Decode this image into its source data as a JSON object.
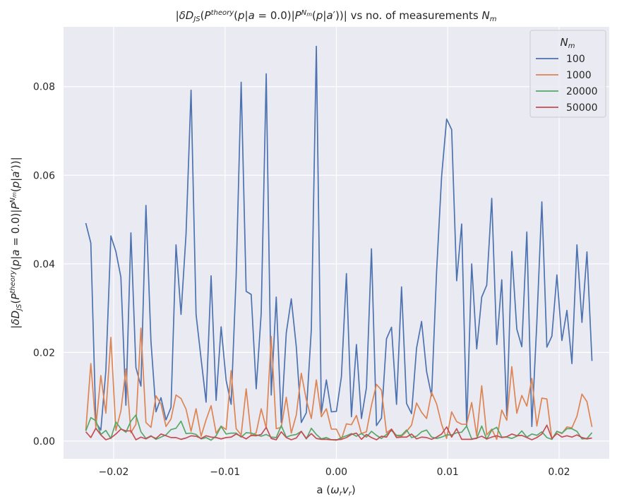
{
  "chart_data": {
    "type": "line",
    "title": "|δD_JS(P^theory(p|a = 0.0)|P^N_m(p|a'))| vs no. of measurements N_m",
    "xlabel": "a (ω_r v_r)",
    "ylabel": "|δD_JS(P^theory(p|a = 0.0)|P^N_m(p|a'))|",
    "xlim": [
      -0.0245,
      0.0245
    ],
    "ylim": [
      -0.004,
      0.0935
    ],
    "xticks": [
      -0.02,
      -0.01,
      0.0,
      0.01,
      0.02
    ],
    "xtick_labels": [
      "−0.02",
      "−0.01",
      "0.00",
      "0.01",
      "0.02"
    ],
    "yticks": [
      0.0,
      0.02,
      0.04,
      0.06,
      0.08
    ],
    "ytick_labels": [
      "0.00",
      "0.02",
      "0.04",
      "0.06",
      "0.08"
    ],
    "grid": true,
    "legend": {
      "title": "N_m",
      "placement": "top-right"
    },
    "x_start": -0.0225,
    "x_step": 0.00045,
    "series": [
      {
        "name": "100",
        "color": "#4c72b0",
        "values": [
          0.0492,
          0.0447,
          0.0042,
          0.0025,
          0.0159,
          0.0463,
          0.0428,
          0.037,
          0.0081,
          0.047,
          0.0166,
          0.0124,
          0.0532,
          0.0225,
          0.0066,
          0.0098,
          0.0048,
          0.0076,
          0.0443,
          0.0286,
          0.0467,
          0.0792,
          0.0286,
          0.0186,
          0.0088,
          0.0373,
          0.0092,
          0.0258,
          0.0137,
          0.0083,
          0.0373,
          0.081,
          0.0338,
          0.0331,
          0.0118,
          0.0289,
          0.0829,
          0.0104,
          0.0325,
          0.0042,
          0.0244,
          0.0321,
          0.0213,
          0.0042,
          0.0064,
          0.0252,
          0.0891,
          0.0063,
          0.0138,
          0.0066,
          0.0067,
          0.0145,
          0.0378,
          0.0055,
          0.0218,
          0.0051,
          0.0121,
          0.0434,
          0.0035,
          0.0052,
          0.0231,
          0.0257,
          0.0083,
          0.0348,
          0.0085,
          0.0062,
          0.021,
          0.027,
          0.0157,
          0.0102,
          0.0384,
          0.0598,
          0.0727,
          0.0703,
          0.0362,
          0.049,
          0.0032,
          0.04,
          0.0208,
          0.0325,
          0.0352,
          0.0548,
          0.0218,
          0.0364,
          0.0057,
          0.0428,
          0.0253,
          0.0213,
          0.0472,
          0.0033,
          0.0268,
          0.054,
          0.0212,
          0.0237,
          0.0375,
          0.0227,
          0.0295,
          0.0175,
          0.0443,
          0.0268,
          0.0427,
          0.0181
        ]
      },
      {
        "name": "1000",
        "color": "#dd8452",
        "values": [
          0.0024,
          0.0175,
          0.0031,
          0.0148,
          0.0063,
          0.0234,
          0.0024,
          0.0068,
          0.0163,
          0.0019,
          0.0038,
          0.0255,
          0.0042,
          0.0031,
          0.0102,
          0.0084,
          0.0033,
          0.005,
          0.0104,
          0.0096,
          0.0072,
          0.0022,
          0.0073,
          0.0011,
          0.0048,
          0.008,
          0.0018,
          0.0034,
          0.0026,
          0.0159,
          0.0028,
          0.0014,
          0.0118,
          0.0012,
          0.0019,
          0.0073,
          0.0029,
          0.0236,
          0.0028,
          0.0031,
          0.0099,
          0.0018,
          0.0059,
          0.0153,
          0.0093,
          0.0051,
          0.0138,
          0.0055,
          0.0073,
          0.0027,
          0.0027,
          0.0004,
          0.0039,
          0.0037,
          0.0058,
          0.0017,
          0.0021,
          0.0081,
          0.0128,
          0.0115,
          0.0019,
          0.0027,
          0.0012,
          0.0011,
          0.0022,
          0.0036,
          0.0086,
          0.0065,
          0.0051,
          0.011,
          0.0084,
          0.0038,
          0.0006,
          0.0066,
          0.0044,
          0.0038,
          0.0038,
          0.0087,
          0.0012,
          0.0125,
          0.0014,
          0.0027,
          0.0004,
          0.007,
          0.0047,
          0.0168,
          0.0063,
          0.0103,
          0.0079,
          0.0141,
          0.0034,
          0.0097,
          0.0095,
          0.0004,
          0.0022,
          0.0017,
          0.0032,
          0.003,
          0.0056,
          0.0106,
          0.0089,
          0.0032
        ]
      },
      {
        "name": "20000",
        "color": "#55a868",
        "values": [
          0.0023,
          0.0053,
          0.0046,
          0.0015,
          0.0024,
          0.0006,
          0.0043,
          0.0028,
          0.002,
          0.0045,
          0.0059,
          0.0021,
          0.0006,
          0.0012,
          0.0004,
          0.0009,
          0.0014,
          0.0026,
          0.0029,
          0.0045,
          0.0017,
          0.0018,
          0.0015,
          0.0005,
          0.0008,
          0.0002,
          0.0012,
          0.0033,
          0.0016,
          0.0018,
          0.0018,
          0.0009,
          0.0019,
          0.0018,
          0.0014,
          0.0011,
          0.0015,
          0.0009,
          0.0008,
          0.0035,
          0.0009,
          0.0013,
          0.0015,
          0.0022,
          0.0005,
          0.0029,
          0.0015,
          0.0005,
          0.0008,
          0.0003,
          0.0002,
          0.0008,
          0.0012,
          0.0017,
          0.0011,
          0.0017,
          0.0009,
          0.0022,
          0.0013,
          0.0006,
          0.0015,
          0.0024,
          0.0013,
          0.0013,
          0.0025,
          0.0008,
          0.0011,
          0.0021,
          0.0025,
          0.0009,
          0.0006,
          0.0009,
          0.0014,
          0.0014,
          0.0019,
          0.002,
          0.0034,
          0.0005,
          0.0006,
          0.0034,
          0.0004,
          0.0025,
          0.0031,
          0.0009,
          0.0009,
          0.0006,
          0.0011,
          0.0023,
          0.0009,
          0.0016,
          0.0013,
          0.0021,
          0.0008,
          0.0004,
          0.0022,
          0.0018,
          0.0028,
          0.0028,
          0.0022,
          0.0005,
          0.0006,
          0.0019
        ]
      },
      {
        "name": "50000",
        "color": "#c44e52",
        "values": [
          0.0021,
          0.0008,
          0.0029,
          0.0014,
          0.0003,
          0.0007,
          0.0016,
          0.0027,
          0.0023,
          0.0023,
          0.0003,
          0.0009,
          0.0005,
          0.0011,
          0.0006,
          0.0016,
          0.0012,
          0.0008,
          0.0008,
          0.0004,
          0.0007,
          0.0012,
          0.0011,
          0.0006,
          0.0012,
          0.0009,
          0.0008,
          0.0005,
          0.0008,
          0.0009,
          0.0016,
          0.0011,
          0.0005,
          0.0013,
          0.0012,
          0.0015,
          0.0031,
          0.0006,
          0.0003,
          0.0021,
          0.0008,
          0.0003,
          0.0007,
          0.0022,
          0.0006,
          0.0017,
          0.0006,
          0.0004,
          0.0004,
          0.0003,
          0.0003,
          0.0004,
          0.0008,
          0.0015,
          0.0018,
          0.0004,
          0.0015,
          0.0008,
          0.0003,
          0.0011,
          0.0009,
          0.0027,
          0.0008,
          0.0009,
          0.0009,
          0.0016,
          0.0005,
          0.0009,
          0.0008,
          0.0004,
          0.0009,
          0.0016,
          0.0032,
          0.0009,
          0.0028,
          0.0004,
          0.0004,
          0.0004,
          0.0007,
          0.0011,
          0.0005,
          0.0009,
          0.0012,
          0.0008,
          0.001,
          0.0016,
          0.0012,
          0.0013,
          0.0008,
          0.0003,
          0.0008,
          0.0016,
          0.0036,
          0.0006,
          0.0017,
          0.0009,
          0.0012,
          0.0009,
          0.0014,
          0.0008,
          0.0005,
          0.0007
        ]
      }
    ]
  }
}
